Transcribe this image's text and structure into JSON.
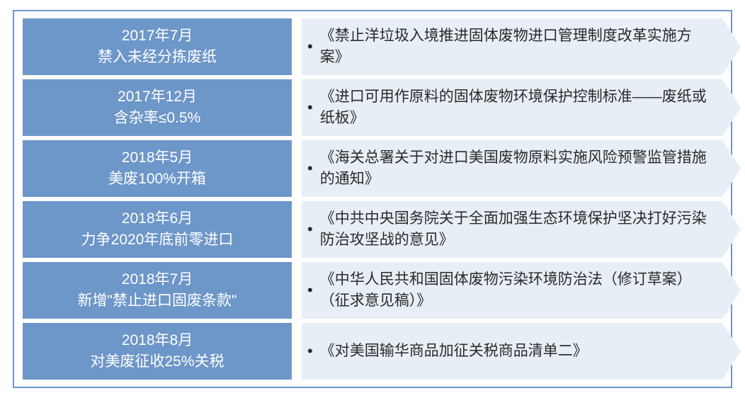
{
  "diagram": {
    "type": "flowchart",
    "border_color": "#6d96c9",
    "left_bg": "#6d96c9",
    "left_text_color": "#ffffff",
    "right_bg": "#e7eef6",
    "right_text_color": "#2a2a2a",
    "font_size": 21,
    "rows": [
      {
        "date": "2017年7月",
        "summary": "禁入未经分拣废纸",
        "policy": "《禁止洋垃圾入境推进固体废物进口管理制度改革实施方案》"
      },
      {
        "date": "2017年12月",
        "summary": "含杂率≤0.5%",
        "policy": "《进口可用作原料的固体废物环境保护控制标准——废纸或纸板》"
      },
      {
        "date": "2018年5月",
        "summary": "美废100%开箱",
        "policy": "《海关总署关于对进口美国废物原料实施风险预警监管措施的通知》"
      },
      {
        "date": "2018年6月",
        "summary": "力争2020年底前零进口",
        "policy": "《中共中央国务院关于全面加强生态环境保护坚决打好污染防治攻坚战的意见》"
      },
      {
        "date": "2018年7月",
        "summary": "新增\"禁止进口固废条款\"",
        "policy": "《中华人民共和国固体废物污染环境防治法（修订草案）（征求意见稿）》"
      },
      {
        "date": "2018年8月",
        "summary": "对美废征收25%关税",
        "policy": "《对美国输华商品加征关税商品清单二》"
      }
    ]
  }
}
